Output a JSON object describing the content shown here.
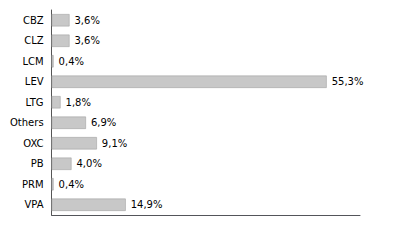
{
  "chart_data": {
    "type": "bar",
    "orientation": "horizontal",
    "categories": [
      "CBZ",
      "CLZ",
      "LCM",
      "LEV",
      "LTG",
      "Others",
      "OXC",
      "PB",
      "PRM",
      "VPA"
    ],
    "values": [
      3.6,
      3.6,
      0.4,
      55.3,
      1.8,
      6.9,
      9.1,
      4.0,
      0.4,
      14.9
    ],
    "value_labels": [
      "3,6%",
      "3,6%",
      "0,4%",
      "55,3%",
      "1,8%",
      "6,9%",
      "9,1%",
      "4,0%",
      "0,4%",
      "14,9%"
    ],
    "color": "#c8c8c8",
    "xlim": [
      0,
      62
    ],
    "data_labels": true,
    "tick_labels": "y",
    "grid": false
  }
}
